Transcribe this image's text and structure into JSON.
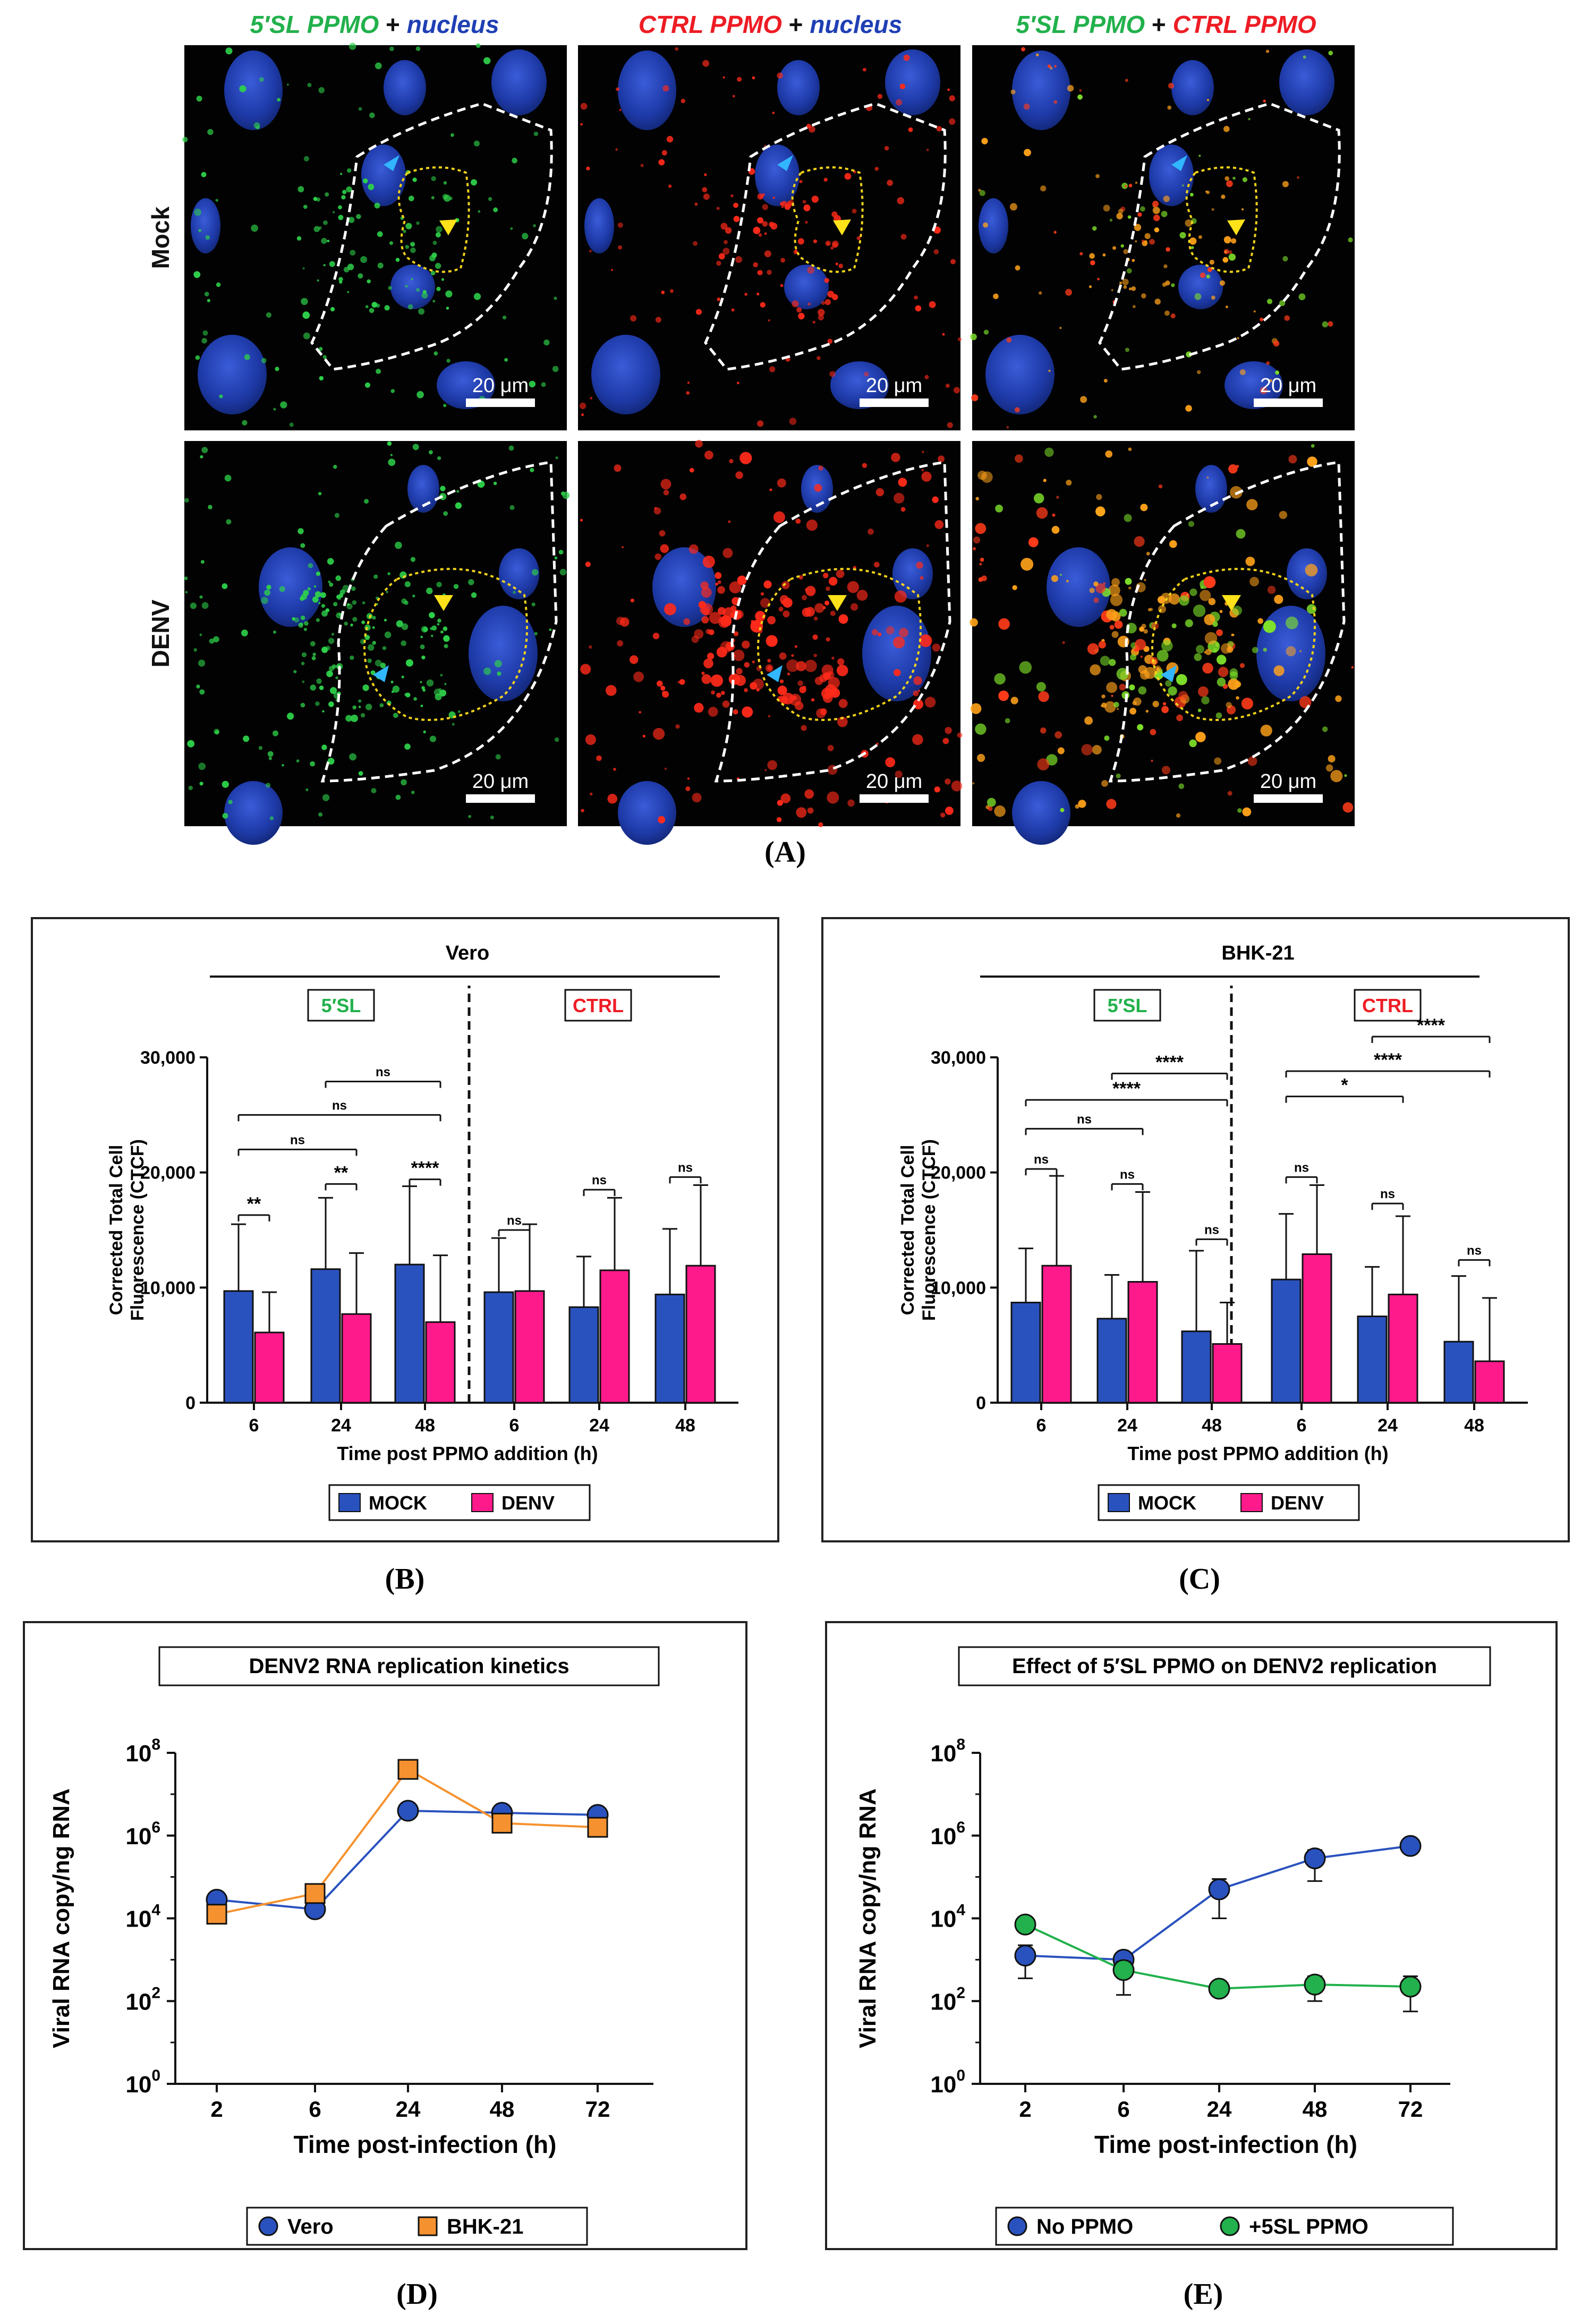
{
  "panelA": {
    "col_titles": [
      [
        {
          "t": "5′SL PPMO",
          "c": "#22b14c",
          "i": true
        },
        {
          "t": " + ",
          "c": "#111111",
          "i": false
        },
        {
          "t": "nucleus",
          "c": "#1f3fb4",
          "i": true
        }
      ],
      [
        {
          "t": "CTRL PPMO",
          "c": "#ee1c24",
          "i": true
        },
        {
          "t": " + ",
          "c": "#111111",
          "i": false
        },
        {
          "t": "nucleus",
          "c": "#1f3fb4",
          "i": true
        }
      ],
      [
        {
          "t": "5′SL PPMO",
          "c": "#22b14c",
          "i": true
        },
        {
          "t": " + ",
          "c": "#111111",
          "i": false
        },
        {
          "t": "CTRL PPMO",
          "c": "#ee1c24",
          "i": true
        }
      ]
    ],
    "row_labels": [
      "Mock",
      "DENV"
    ],
    "scale_bar": "20 μm",
    "label": "(A)"
  },
  "panelB": {
    "label": "(B)",
    "chart_data": {
      "type": "bar",
      "title": "Vero",
      "groups": [
        {
          "name": "5′SL",
          "color": "#22b14c"
        },
        {
          "name": "CTRL",
          "color": "#ee1c24"
        }
      ],
      "categories": [
        "6",
        "24",
        "48",
        "6",
        "24",
        "48"
      ],
      "series": [
        {
          "name": "MOCK",
          "color": "#2a52be",
          "values": [
            9700,
            11600,
            12000,
            9600,
            8300,
            9400
          ],
          "errors": [
            5800,
            6200,
            6800,
            4700,
            4400,
            5700
          ]
        },
        {
          "name": "DENV",
          "color": "#ff1a8c",
          "values": [
            6100,
            7700,
            7000,
            9700,
            11500,
            11900
          ],
          "errors": [
            3500,
            5300,
            5800,
            5800,
            6300,
            7000
          ]
        }
      ],
      "ylabel": "Corrected Total Cell Fluorescence (CTCF)",
      "xlabel": "Time post PPMO addition (h)",
      "ylim": [
        0,
        30000
      ],
      "yticks": [
        0,
        10000,
        20000,
        30000
      ],
      "ytick_labels": [
        "0",
        "10,000",
        "20,000",
        "30,000"
      ],
      "annotations": [
        {
          "text": "**",
          "from": 0,
          "to": 0,
          "y": 16300
        },
        {
          "text": "**",
          "from": 1,
          "to": 1,
          "y": 19000
        },
        {
          "text": "****",
          "from": 2,
          "to": 2,
          "y": 19400
        },
        {
          "text": "ns",
          "from": 0,
          "to": 1,
          "y": 22000
        },
        {
          "text": "ns",
          "from": 0,
          "to": 2,
          "y": 25000
        },
        {
          "text": "ns",
          "from": 1,
          "to": 2,
          "y": 27900
        },
        {
          "text": "ns",
          "from": 3,
          "to": 3,
          "y": 15000
        },
        {
          "text": "ns",
          "from": 4,
          "to": 4,
          "y": 18500
        },
        {
          "text": "ns",
          "from": 5,
          "to": 5,
          "y": 19600
        }
      ],
      "legend": [
        "MOCK",
        "DENV"
      ]
    }
  },
  "panelC": {
    "label": "(C)",
    "chart_data": {
      "type": "bar",
      "title": "BHK-21",
      "groups": [
        {
          "name": "5′SL",
          "color": "#22b14c"
        },
        {
          "name": "CTRL",
          "color": "#ee1c24"
        }
      ],
      "categories": [
        "6",
        "24",
        "48",
        "6",
        "24",
        "48"
      ],
      "series": [
        {
          "name": "MOCK",
          "color": "#2a52be",
          "values": [
            8700,
            7300,
            6200,
            10700,
            7500,
            5300
          ],
          "errors": [
            4700,
            3800,
            7000,
            5700,
            4300,
            5700
          ]
        },
        {
          "name": "DENV",
          "color": "#ff1a8c",
          "values": [
            11900,
            10500,
            5100,
            12900,
            9400,
            3600
          ],
          "errors": [
            7800,
            7800,
            3600,
            6000,
            6800,
            5500
          ]
        }
      ],
      "ylabel": "Corrected Total Cell Fluorescence (CTCF)",
      "xlabel": "Time post PPMO addition (h)",
      "ylim": [
        0,
        30000
      ],
      "yticks": [
        0,
        10000,
        20000,
        30000
      ],
      "ytick_labels": [
        "0",
        "10,000",
        "20,000",
        "30,000"
      ],
      "annotations": [
        {
          "text": "ns",
          "from": 0,
          "to": 0,
          "y": 20300
        },
        {
          "text": "ns",
          "from": 1,
          "to": 1,
          "y": 19000
        },
        {
          "text": "ns",
          "from": 2,
          "to": 2,
          "y": 14200
        },
        {
          "text": "ns",
          "from": 0,
          "to": 1,
          "y": 23800
        },
        {
          "text": "****",
          "from": 0,
          "to": 2,
          "y": 26300
        },
        {
          "text": "****",
          "from": 1,
          "to": 2,
          "y": 28600
        },
        {
          "text": "ns",
          "from": 3,
          "to": 3,
          "y": 19600
        },
        {
          "text": "ns",
          "from": 4,
          "to": 4,
          "y": 17300
        },
        {
          "text": "ns",
          "from": 5,
          "to": 5,
          "y": 12400
        },
        {
          "text": "*",
          "from": 3,
          "to": 4,
          "y": 26600
        },
        {
          "text": "****",
          "from": 3,
          "to": 5,
          "y": 28800
        },
        {
          "text": "****",
          "from": 4,
          "to": 5,
          "y": 31800
        }
      ],
      "legend": [
        "MOCK",
        "DENV"
      ]
    }
  },
  "panelD": {
    "label": "(D)",
    "chart_data": {
      "type": "line",
      "title": "DENV2 RNA replication kinetics",
      "categories": [
        "2",
        "6",
        "24",
        "48",
        "72"
      ],
      "series": [
        {
          "name": "Vero",
          "color": "#2a52be",
          "marker": "circle",
          "log10_values": [
            4.45,
            4.22,
            6.6,
            6.55,
            6.5
          ],
          "err_lo": [
            0.0,
            0.0,
            0.0,
            0.05,
            0.25
          ],
          "err_hi": [
            0.0,
            0.0,
            0.0,
            0.05,
            0.15
          ]
        },
        {
          "name": "BHK-21",
          "color": "#f5922f",
          "marker": "square",
          "log10_values": [
            4.1,
            4.6,
            7.6,
            6.3,
            6.2
          ],
          "err_lo": [
            0,
            0,
            0,
            0,
            0.15
          ],
          "err_hi": [
            0,
            0,
            0,
            0,
            0
          ]
        }
      ],
      "ylabel": "Viral RNA copy/ng RNA",
      "xlabel": "Time post-infection (h)",
      "yscale": "log",
      "ylim_log10": [
        0,
        8
      ],
      "ytick_exponents": [
        "0",
        "2",
        "4",
        "6",
        "8"
      ],
      "ytick_base": "10",
      "legend": [
        "Vero",
        "BHK-21"
      ]
    }
  },
  "panelE": {
    "label": "(E)",
    "chart_data": {
      "type": "line",
      "title": "Effect of 5′SL PPMO on DENV2 replication",
      "categories": [
        "2",
        "6",
        "24",
        "48",
        "72"
      ],
      "series": [
        {
          "name": "No PPMO",
          "color": "#2a52be",
          "marker": "circle",
          "log10_values": [
            3.1,
            3.0,
            4.7,
            5.45,
            5.75
          ],
          "err_lo": [
            0.55,
            0.0,
            0.7,
            0.55,
            0.0
          ],
          "err_hi": [
            0.25,
            0.0,
            0.25,
            0.2,
            0.0
          ]
        },
        {
          "name": "+5SL PPMO",
          "color": "#22b14c",
          "marker": "circle",
          "log10_values": [
            3.85,
            2.75,
            2.3,
            2.4,
            2.35
          ],
          "err_lo": [
            0.0,
            0.6,
            0.1,
            0.4,
            0.6
          ],
          "err_hi": [
            0.0,
            0.2,
            0.1,
            0.2,
            0.25
          ]
        }
      ],
      "ylabel": "Viral RNA copy/ng RNA",
      "xlabel": "Time post-infection (h)",
      "yscale": "log",
      "ylim_log10": [
        0,
        8
      ],
      "ytick_exponents": [
        "0",
        "2",
        "4",
        "6",
        "8"
      ],
      "ytick_base": "10",
      "legend": [
        "No PPMO",
        "+5SL PPMO"
      ]
    }
  }
}
